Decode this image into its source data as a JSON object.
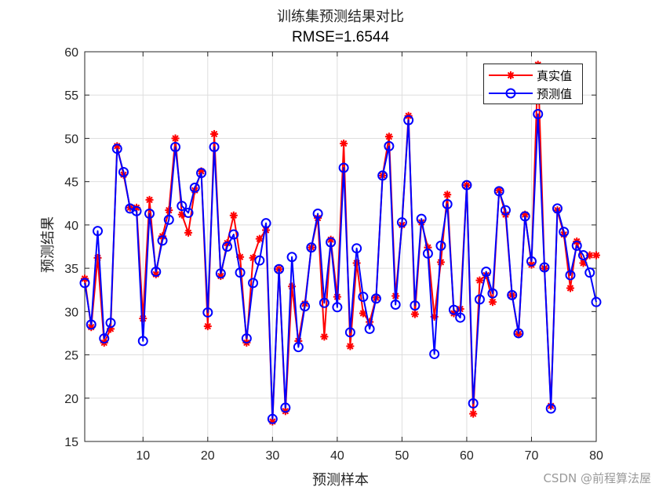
{
  "title": "训练集预测结果对比",
  "subtitle": "RMSE=1.6544",
  "xlabel": "预测样本",
  "ylabel": "预测结果",
  "watermark": "CSDN @前程算法屋",
  "colors": {
    "true": "#ff0000",
    "pred": "#0000ff",
    "axis": "#262626",
    "grid": "#dedede"
  },
  "chart_data": {
    "type": "line",
    "title": "训练集预测结果对比",
    "subtitle": "RMSE=1.6544",
    "xlabel": "预测样本",
    "ylabel": "预测结果",
    "xlim": [
      1,
      80
    ],
    "ylim": [
      15,
      60
    ],
    "xticks": [
      10,
      20,
      30,
      40,
      50,
      60,
      70,
      80
    ],
    "yticks": [
      15,
      20,
      25,
      30,
      35,
      40,
      45,
      50,
      55,
      60
    ],
    "grid": true,
    "legend_position": "top-right",
    "x": [
      1,
      2,
      3,
      4,
      5,
      6,
      7,
      8,
      9,
      10,
      11,
      12,
      13,
      14,
      15,
      16,
      17,
      18,
      19,
      20,
      21,
      22,
      23,
      24,
      25,
      26,
      27,
      28,
      29,
      30,
      31,
      32,
      33,
      34,
      35,
      36,
      37,
      38,
      39,
      40,
      41,
      42,
      43,
      44,
      45,
      46,
      47,
      48,
      49,
      50,
      51,
      52,
      53,
      54,
      55,
      56,
      57,
      58,
      59,
      60,
      61,
      62,
      63,
      64,
      65,
      66,
      67,
      68,
      69,
      70,
      71,
      72,
      73,
      74,
      75,
      76,
      77,
      78,
      79,
      80
    ],
    "series": [
      {
        "name": "真实值",
        "color": "#ff0000",
        "marker": "asterisk",
        "values": [
          33.8,
          28.2,
          36.2,
          26.4,
          28.0,
          49.1,
          45.8,
          42.0,
          42.0,
          29.2,
          42.9,
          34.3,
          38.7,
          41.7,
          50.0,
          41.2,
          39.1,
          44.0,
          46.2,
          28.3,
          50.5,
          34.1,
          37.9,
          41.1,
          36.3,
          26.4,
          36.2,
          38.4,
          39.4,
          17.3,
          34.9,
          18.5,
          32.9,
          26.6,
          30.9,
          37.4,
          40.8,
          27.1,
          38.3,
          31.7,
          49.4,
          26.0,
          35.6,
          29.8,
          28.8,
          31.6,
          45.7,
          50.2,
          31.8,
          40.0,
          52.6,
          29.7,
          40.3,
          37.4,
          29.4,
          35.7,
          43.5,
          29.8,
          30.3,
          44.6,
          18.2,
          33.6,
          34.2,
          31.1,
          44.0,
          41.2,
          31.9,
          27.4,
          41.2,
          35.4,
          58.5,
          35.0,
          19.1,
          41.7,
          38.9,
          32.7,
          38.1,
          35.6,
          36.5,
          36.5
        ]
      },
      {
        "name": "预测值",
        "color": "#0000ff",
        "marker": "circle",
        "values": [
          33.3,
          28.5,
          39.3,
          26.9,
          28.7,
          48.8,
          46.1,
          41.9,
          41.6,
          26.6,
          41.3,
          34.6,
          38.2,
          40.6,
          49.0,
          42.2,
          41.4,
          44.3,
          46.0,
          29.9,
          49.0,
          34.4,
          37.5,
          38.9,
          34.5,
          26.9,
          33.3,
          35.9,
          40.2,
          17.6,
          34.9,
          18.9,
          36.3,
          25.9,
          30.6,
          37.4,
          41.3,
          31.0,
          38.0,
          30.5,
          46.6,
          27.6,
          37.3,
          31.7,
          28.0,
          31.5,
          45.7,
          49.1,
          30.8,
          40.3,
          52.1,
          30.7,
          40.7,
          36.7,
          25.1,
          37.6,
          42.4,
          30.2,
          29.3,
          44.6,
          19.4,
          31.4,
          34.6,
          32.1,
          43.9,
          41.7,
          31.9,
          27.5,
          41.0,
          35.8,
          52.8,
          35.1,
          18.8,
          41.9,
          39.2,
          34.2,
          37.6,
          36.5,
          34.5,
          31.1
        ]
      }
    ]
  }
}
